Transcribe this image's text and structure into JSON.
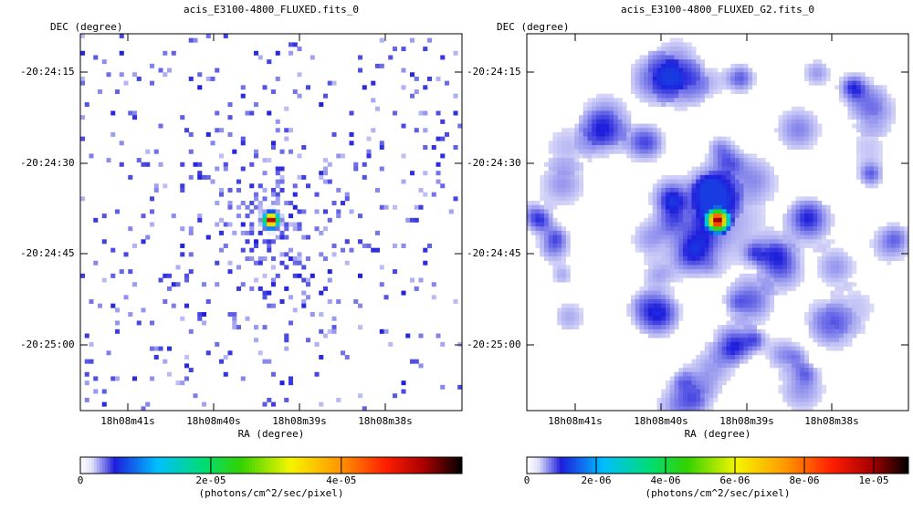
{
  "chart_data": [
    {
      "type": "heatmap",
      "title": "acis_E3100-4800_FLUXED.fits_0",
      "xlabel": "RA (degree)",
      "ylabel": "DEC (degree)",
      "x_ticks": [
        "18h08m41s",
        "18h08m40s",
        "18h08m39s",
        "18h08m38s"
      ],
      "y_ticks": [
        "-20:24:15",
        "-20:24:30",
        "-20:24:45",
        "-20:25:00"
      ],
      "colorbar": {
        "label": "(photons/cm^2/sec/pixel)",
        "ticks": [
          "0",
          "2e-05",
          "4e-05"
        ],
        "tick_values": [
          0,
          2e-05,
          4e-05
        ],
        "range": [
          0,
          5.85e-05
        ]
      },
      "sparse": true,
      "source": {
        "ra": "18h08m39.3s",
        "dec": "-20:24:40",
        "peak": 5.8e-05
      }
    },
    {
      "type": "heatmap",
      "title": "acis_E3100-4800_FLUXED_G2.fits_0",
      "xlabel": "RA (degree)",
      "ylabel": "DEC (degree)",
      "x_ticks": [
        "18h08m41s",
        "18h08m40s",
        "18h08m39s",
        "18h08m38s"
      ],
      "y_ticks": [
        "-20:24:15",
        "-20:24:30",
        "-20:24:45",
        "-20:25:00"
      ],
      "colorbar": {
        "label": "(photons/cm^2/sec/pixel)",
        "ticks": [
          "0",
          "2e-06",
          "4e-06",
          "6e-06",
          "8e-06",
          "1e-05"
        ],
        "tick_values": [
          0,
          2e-06,
          4e-06,
          6e-06,
          8e-06,
          1e-05
        ],
        "range": [
          0,
          1.1e-05
        ]
      },
      "sparse": false,
      "source": {
        "ra": "18h08m39.3s",
        "dec": "-20:24:40",
        "peak": 1.05e-05
      }
    }
  ]
}
